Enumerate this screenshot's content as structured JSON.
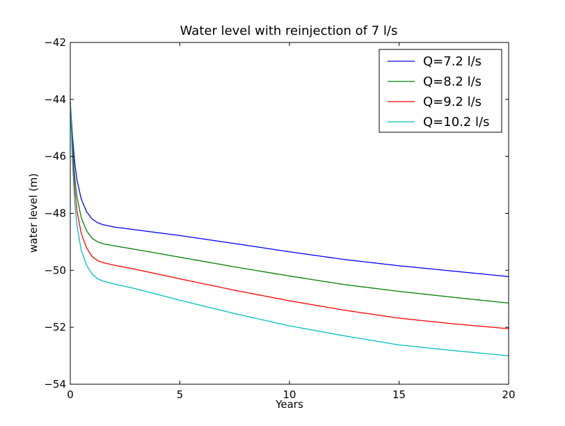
{
  "chart_data": {
    "type": "line",
    "title": "Water level with reinjection of 7 l/s",
    "xlabel": "Years",
    "ylabel": "water level (m)",
    "xlim": [
      0,
      20
    ],
    "ylim": [
      -54,
      -42
    ],
    "x_ticks": [
      0,
      5,
      10,
      15,
      20
    ],
    "y_ticks": [
      -54,
      -52,
      -50,
      -48,
      -46,
      -44,
      -42
    ],
    "x_tick_labels": [
      "0",
      "5",
      "10",
      "15",
      "20"
    ],
    "y_tick_labels": [
      "−54",
      "−52",
      "−50",
      "−48",
      "−46",
      "−44",
      "−42"
    ],
    "grid": false,
    "legend_position": "top-right",
    "x": [
      0,
      0.1,
      0.2,
      0.3,
      0.5,
      0.75,
      1,
      1.25,
      1.5,
      2,
      3,
      5,
      7.5,
      10,
      12.5,
      15,
      17.5,
      20
    ],
    "series": [
      {
        "name": "Q=7.2 l/s",
        "color": "#0000ff",
        "values": [
          -44.1,
          -45.3,
          -46.2,
          -46.8,
          -47.5,
          -47.95,
          -48.2,
          -48.33,
          -48.4,
          -48.48,
          -48.58,
          -48.78,
          -49.06,
          -49.35,
          -49.62,
          -49.84,
          -50.03,
          -50.22
        ]
      },
      {
        "name": "Q=8.2 l/s",
        "color": "#008000",
        "values": [
          -44.1,
          -45.6,
          -46.7,
          -47.4,
          -48.15,
          -48.62,
          -48.88,
          -49.0,
          -49.07,
          -49.14,
          -49.27,
          -49.54,
          -49.88,
          -50.2,
          -50.5,
          -50.74,
          -50.95,
          -51.15
        ]
      },
      {
        "name": "Q=9.2 l/s",
        "color": "#ff0000",
        "values": [
          -44.1,
          -45.9,
          -47.1,
          -47.9,
          -48.7,
          -49.22,
          -49.52,
          -49.66,
          -49.73,
          -49.82,
          -49.97,
          -50.3,
          -50.7,
          -51.07,
          -51.4,
          -51.68,
          -51.88,
          -52.05
        ]
      },
      {
        "name": "Q=10.2 l/s",
        "color": "#00bfbf",
        "values": [
          -44.1,
          -46.2,
          -47.6,
          -48.4,
          -49.3,
          -49.83,
          -50.14,
          -50.3,
          -50.38,
          -50.48,
          -50.65,
          -51.05,
          -51.52,
          -51.95,
          -52.3,
          -52.62,
          -52.82,
          -53.0
        ]
      }
    ]
  }
}
